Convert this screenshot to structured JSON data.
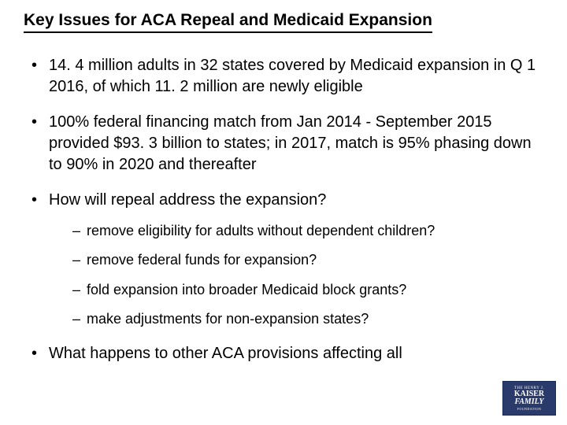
{
  "title": "Key Issues for ACA Repeal and Medicaid Expansion",
  "bullets": [
    {
      "text": "14. 4 million adults in 32 states covered by Medicaid expansion in Q 1 2016, of which 11. 2 million are newly eligible"
    },
    {
      "text": "100% federal financing match from Jan 2014 - September 2015 provided $93. 3 billion to states; in 2017, match is 95% phasing down to 90% in 2020 and thereafter"
    },
    {
      "text": "How will repeal address the expansion?",
      "sub": [
        "remove eligibility for adults without dependent children?",
        "remove federal funds for expansion?",
        "fold expansion into broader Medicaid block grants?",
        "make adjustments for non-expansion states?"
      ]
    },
    {
      "text": "What happens to other ACA provisions affecting all"
    }
  ],
  "logo": {
    "line1": "THE HENRY J.",
    "line2": "KAISER",
    "line3": "FAMILY",
    "line4": "FOUNDATION"
  },
  "style": {
    "background": "#ffffff",
    "text_color": "#000000",
    "title_fontsize": 21,
    "bullet_fontsize": 20,
    "sub_fontsize": 18,
    "logo_bg": "#2a3a6a"
  }
}
